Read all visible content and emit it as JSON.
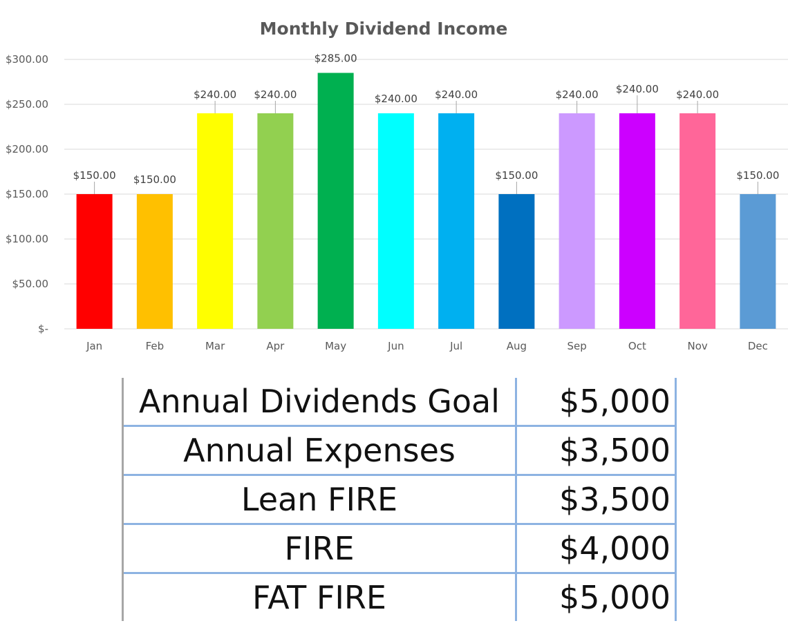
{
  "chart_data": {
    "type": "bar",
    "title": "Monthly Dividend Income",
    "xlabel": "",
    "ylabel": "",
    "categories": [
      "Jan",
      "Feb",
      "Mar",
      "Apr",
      "May",
      "Jun",
      "Jul",
      "Aug",
      "Sep",
      "Oct",
      "Nov",
      "Dec"
    ],
    "values": [
      150,
      150,
      240,
      240,
      285,
      240,
      240,
      150,
      240,
      240,
      240,
      150
    ],
    "data_labels": [
      "$150.00",
      "$150.00",
      "$240.00",
      "$240.00",
      "$285.00",
      "$240.00",
      "$240.00",
      "$150.00",
      "$240.00",
      "$240.00",
      "$240.00",
      "$150.00"
    ],
    "colors": [
      "#ff0000",
      "#ffc000",
      "#ffff00",
      "#92d050",
      "#00b050",
      "#00ffff",
      "#00b0f0",
      "#0070c0",
      "#cc99ff",
      "#cc00ff",
      "#ff6699",
      "#5b9bd5"
    ],
    "ylim": [
      0,
      300
    ],
    "yticks": [
      0,
      50,
      100,
      150,
      200,
      250,
      300
    ],
    "ytick_labels": [
      "$-",
      "$50.00",
      "$100.00",
      "$150.00",
      "$200.00",
      "$250.00",
      "$300.00"
    ],
    "grid": true,
    "legend": "none"
  },
  "table": {
    "rows": [
      {
        "label": "Annual Dividends Goal",
        "value": "$5,000"
      },
      {
        "label": "Annual Expenses",
        "value": "$3,500"
      },
      {
        "label": "Lean FIRE",
        "value": "$3,500"
      },
      {
        "label": "FIRE",
        "value": "$4,000"
      },
      {
        "label": "FAT FIRE",
        "value": "$5,000"
      }
    ]
  }
}
